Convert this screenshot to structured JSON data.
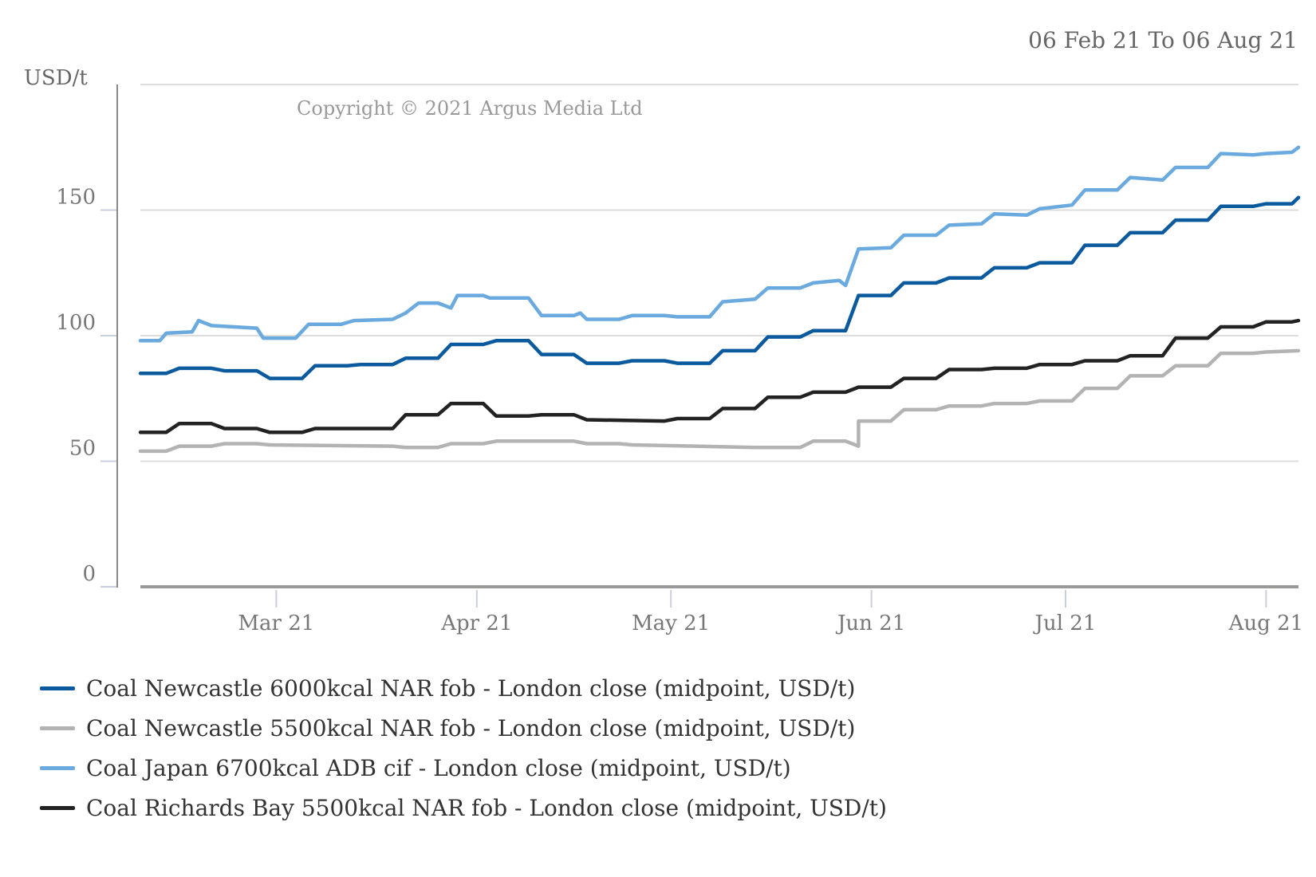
{
  "chart_data": {
    "type": "line",
    "date_range": "06 Feb 21  To 06 Aug 21",
    "ylabel": "USD/t",
    "copyright": "Copyright © 2021 Argus Media Ltd",
    "ylim": [
      0,
      200
    ],
    "y_ticks": [
      0,
      50,
      100,
      150
    ],
    "x_range": [
      "2021-02-08",
      "2021-08-06"
    ],
    "x_ticks": [
      {
        "label": "Mar 21",
        "date": "2021-03-01"
      },
      {
        "label": "Apr 21",
        "date": "2021-04-01"
      },
      {
        "label": "May 21",
        "date": "2021-05-01"
      },
      {
        "label": "Jun 21",
        "date": "2021-06-01"
      },
      {
        "label": "Jul 21",
        "date": "2021-07-01"
      },
      {
        "label": "Aug 21",
        "date": "2021-08-01"
      }
    ],
    "grid": true,
    "legend_position": "bottom",
    "series": [
      {
        "name": "Coal Newcastle 6000kcal NAR fob - London close (midpoint, USD/t)",
        "color": "#0b5a9e",
        "points": [
          [
            "2021-02-08",
            85
          ],
          [
            "2021-02-12",
            85
          ],
          [
            "2021-02-14",
            87
          ],
          [
            "2021-02-19",
            87
          ],
          [
            "2021-02-21",
            86
          ],
          [
            "2021-02-26",
            86
          ],
          [
            "2021-02-28",
            83
          ],
          [
            "2021-03-05",
            83
          ],
          [
            "2021-03-07",
            88
          ],
          [
            "2021-03-12",
            88
          ],
          [
            "2021-03-14",
            88.5
          ],
          [
            "2021-03-19",
            88.5
          ],
          [
            "2021-03-21",
            91
          ],
          [
            "2021-03-26",
            91
          ],
          [
            "2021-03-28",
            96.5
          ],
          [
            "2021-04-02",
            96.5
          ],
          [
            "2021-04-04",
            98
          ],
          [
            "2021-04-09",
            98
          ],
          [
            "2021-04-11",
            92.5
          ],
          [
            "2021-04-16",
            92.5
          ],
          [
            "2021-04-18",
            89
          ],
          [
            "2021-04-23",
            89
          ],
          [
            "2021-04-25",
            90
          ],
          [
            "2021-04-30",
            90
          ],
          [
            "2021-05-02",
            89
          ],
          [
            "2021-05-07",
            89
          ],
          [
            "2021-05-09",
            94
          ],
          [
            "2021-05-14",
            94
          ],
          [
            "2021-05-16",
            99.5
          ],
          [
            "2021-05-21",
            99.5
          ],
          [
            "2021-05-23",
            102
          ],
          [
            "2021-05-28",
            102
          ],
          [
            "2021-05-30",
            116
          ],
          [
            "2021-06-04",
            116
          ],
          [
            "2021-06-06",
            121
          ],
          [
            "2021-06-11",
            121
          ],
          [
            "2021-06-13",
            123
          ],
          [
            "2021-06-18",
            123
          ],
          [
            "2021-06-20",
            127
          ],
          [
            "2021-06-25",
            127
          ],
          [
            "2021-06-27",
            129
          ],
          [
            "2021-07-02",
            129
          ],
          [
            "2021-07-04",
            136
          ],
          [
            "2021-07-09",
            136
          ],
          [
            "2021-07-11",
            141
          ],
          [
            "2021-07-16",
            141
          ],
          [
            "2021-07-18",
            146
          ],
          [
            "2021-07-23",
            146
          ],
          [
            "2021-07-25",
            151.5
          ],
          [
            "2021-07-30",
            151.5
          ],
          [
            "2021-08-01",
            152.5
          ],
          [
            "2021-08-05",
            152.5
          ],
          [
            "2021-08-06",
            155
          ]
        ]
      },
      {
        "name": "Coal Newcastle 5500kcal NAR fob - London close (midpoint, USD/t)",
        "color": "#b3b3b3",
        "points": [
          [
            "2021-02-08",
            54
          ],
          [
            "2021-02-12",
            54
          ],
          [
            "2021-02-14",
            56
          ],
          [
            "2021-02-19",
            56
          ],
          [
            "2021-02-21",
            57
          ],
          [
            "2021-02-26",
            57
          ],
          [
            "2021-02-28",
            56.5
          ],
          [
            "2021-03-19",
            56
          ],
          [
            "2021-03-21",
            55.5
          ],
          [
            "2021-03-26",
            55.5
          ],
          [
            "2021-03-28",
            57
          ],
          [
            "2021-04-02",
            57
          ],
          [
            "2021-04-04",
            58
          ],
          [
            "2021-04-16",
            58
          ],
          [
            "2021-04-18",
            57
          ],
          [
            "2021-04-23",
            57
          ],
          [
            "2021-04-25",
            56.5
          ],
          [
            "2021-05-30",
            56
          ],
          [
            "2021-05-14",
            55.5
          ],
          [
            "2021-05-21",
            55.5
          ],
          [
            "2021-05-23",
            58
          ],
          [
            "2021-05-28",
            58
          ],
          [
            "2021-05-30",
            66
          ],
          [
            "2021-06-04",
            66
          ],
          [
            "2021-06-06",
            70.5
          ],
          [
            "2021-06-11",
            70.5
          ],
          [
            "2021-06-13",
            72
          ],
          [
            "2021-06-18",
            72
          ],
          [
            "2021-06-20",
            73
          ],
          [
            "2021-06-25",
            73
          ],
          [
            "2021-06-27",
            74
          ],
          [
            "2021-07-02",
            74
          ],
          [
            "2021-07-04",
            79
          ],
          [
            "2021-07-09",
            79
          ],
          [
            "2021-07-11",
            84
          ],
          [
            "2021-07-16",
            84
          ],
          [
            "2021-07-18",
            88
          ],
          [
            "2021-07-23",
            88
          ],
          [
            "2021-07-25",
            93
          ],
          [
            "2021-07-30",
            93
          ],
          [
            "2021-08-01",
            93.5
          ],
          [
            "2021-08-06",
            94
          ]
        ]
      },
      {
        "name": "Coal Japan 6700kcal ADB cif - London close (midpoint, USD/t)",
        "color": "#6aaade",
        "points": [
          [
            "2021-02-08",
            98
          ],
          [
            "2021-02-11",
            98
          ],
          [
            "2021-02-12",
            101
          ],
          [
            "2021-02-16",
            101.5
          ],
          [
            "2021-02-17",
            106
          ],
          [
            "2021-02-19",
            104
          ],
          [
            "2021-02-26",
            103
          ],
          [
            "2021-02-27",
            99
          ],
          [
            "2021-03-04",
            99
          ],
          [
            "2021-03-06",
            104.5
          ],
          [
            "2021-03-11",
            104.5
          ],
          [
            "2021-03-13",
            106
          ],
          [
            "2021-03-19",
            106.5
          ],
          [
            "2021-03-21",
            109
          ],
          [
            "2021-03-23",
            113
          ],
          [
            "2021-03-26",
            113
          ],
          [
            "2021-03-28",
            111
          ],
          [
            "2021-03-29",
            116
          ],
          [
            "2021-04-02",
            116
          ],
          [
            "2021-04-03",
            115
          ],
          [
            "2021-04-09",
            115
          ],
          [
            "2021-04-11",
            108
          ],
          [
            "2021-04-16",
            108
          ],
          [
            "2021-04-17",
            109
          ],
          [
            "2021-04-18",
            106.5
          ],
          [
            "2021-04-23",
            106.5
          ],
          [
            "2021-04-25",
            108
          ],
          [
            "2021-04-30",
            108
          ],
          [
            "2021-05-02",
            107.5
          ],
          [
            "2021-05-07",
            107.5
          ],
          [
            "2021-05-09",
            113.5
          ],
          [
            "2021-05-14",
            114.5
          ],
          [
            "2021-05-16",
            119
          ],
          [
            "2021-05-21",
            119
          ],
          [
            "2021-05-23",
            121
          ],
          [
            "2021-05-27",
            122
          ],
          [
            "2021-05-28",
            120
          ],
          [
            "2021-05-30",
            134.5
          ],
          [
            "2021-06-04",
            135
          ],
          [
            "2021-06-06",
            140
          ],
          [
            "2021-06-11",
            140
          ],
          [
            "2021-06-13",
            144
          ],
          [
            "2021-06-18",
            144.5
          ],
          [
            "2021-06-20",
            148.5
          ],
          [
            "2021-06-25",
            148
          ],
          [
            "2021-06-27",
            150.5
          ],
          [
            "2021-07-02",
            152
          ],
          [
            "2021-07-04",
            158
          ],
          [
            "2021-07-09",
            158
          ],
          [
            "2021-07-11",
            163
          ],
          [
            "2021-07-16",
            162
          ],
          [
            "2021-07-18",
            167
          ],
          [
            "2021-07-23",
            167
          ],
          [
            "2021-07-25",
            172.5
          ],
          [
            "2021-07-30",
            172
          ],
          [
            "2021-08-01",
            172.5
          ],
          [
            "2021-08-05",
            173
          ],
          [
            "2021-08-06",
            175
          ]
        ]
      },
      {
        "name": "Coal Richards Bay 5500kcal NAR fob - London close (midpoint, USD/t)",
        "color": "#222222",
        "points": [
          [
            "2021-02-08",
            61.5
          ],
          [
            "2021-02-12",
            61.5
          ],
          [
            "2021-02-14",
            65
          ],
          [
            "2021-02-19",
            65
          ],
          [
            "2021-02-21",
            63
          ],
          [
            "2021-02-26",
            63
          ],
          [
            "2021-02-28",
            61.5
          ],
          [
            "2021-03-05",
            61.5
          ],
          [
            "2021-03-07",
            63
          ],
          [
            "2021-03-19",
            63
          ],
          [
            "2021-03-21",
            68.5
          ],
          [
            "2021-03-26",
            68.5
          ],
          [
            "2021-03-28",
            73
          ],
          [
            "2021-04-02",
            73
          ],
          [
            "2021-04-04",
            68
          ],
          [
            "2021-04-09",
            68
          ],
          [
            "2021-04-11",
            68.5
          ],
          [
            "2021-04-16",
            68.5
          ],
          [
            "2021-04-18",
            66.5
          ],
          [
            "2021-04-30",
            66
          ],
          [
            "2021-05-02",
            67
          ],
          [
            "2021-05-07",
            67
          ],
          [
            "2021-05-09",
            71
          ],
          [
            "2021-05-14",
            71
          ],
          [
            "2021-05-16",
            75.5
          ],
          [
            "2021-05-21",
            75.5
          ],
          [
            "2021-05-23",
            77.5
          ],
          [
            "2021-05-28",
            77.5
          ],
          [
            "2021-05-30",
            79.5
          ],
          [
            "2021-06-04",
            79.5
          ],
          [
            "2021-06-06",
            83
          ],
          [
            "2021-06-11",
            83
          ],
          [
            "2021-06-13",
            86.5
          ],
          [
            "2021-06-18",
            86.5
          ],
          [
            "2021-06-20",
            87
          ],
          [
            "2021-06-25",
            87
          ],
          [
            "2021-06-27",
            88.5
          ],
          [
            "2021-07-02",
            88.5
          ],
          [
            "2021-07-04",
            90
          ],
          [
            "2021-07-09",
            90
          ],
          [
            "2021-07-11",
            92
          ],
          [
            "2021-07-16",
            92
          ],
          [
            "2021-07-18",
            99
          ],
          [
            "2021-07-23",
            99
          ],
          [
            "2021-07-25",
            103.5
          ],
          [
            "2021-07-30",
            103.5
          ],
          [
            "2021-08-01",
            105.5
          ],
          [
            "2021-08-05",
            105.5
          ],
          [
            "2021-08-06",
            106
          ]
        ]
      }
    ]
  }
}
